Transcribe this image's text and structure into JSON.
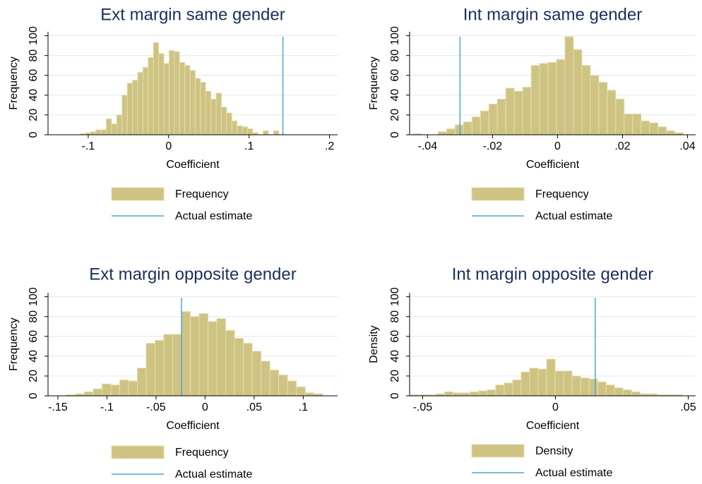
{
  "chart_data": [
    {
      "type": "histogram",
      "title": "Ext margin same gender",
      "xlabel": "Coefficient",
      "ylabel": "Frequency",
      "bars": {
        "name": "Frequency",
        "color": "#cfc383",
        "bins": [
          -0.11,
          -0.1035,
          -0.097,
          -0.0905,
          -0.084,
          -0.0775,
          -0.071,
          -0.0645,
          -0.058,
          -0.0515,
          -0.045,
          -0.0385,
          -0.032,
          -0.0255,
          -0.019,
          -0.0125,
          -0.006,
          0.0005,
          0.007,
          0.0135,
          0.02,
          0.0265,
          0.033,
          0.0395,
          0.046,
          0.0525,
          0.059,
          0.0655,
          0.072,
          0.0785,
          0.085,
          0.0915,
          0.098,
          0.1045,
          0.111,
          0.1175,
          0.124,
          0.1305,
          0.137
        ],
        "counts": [
          1,
          2,
          3,
          5,
          5,
          16,
          11,
          20,
          40,
          52,
          55,
          63,
          68,
          78,
          93,
          82,
          72,
          85,
          84,
          73,
          70,
          65,
          57,
          53,
          44,
          36,
          42,
          28,
          22,
          14,
          9,
          8,
          6,
          2,
          0,
          4,
          0,
          4
        ]
      },
      "vline": {
        "name": "Actual estimate",
        "value": 0.142,
        "color": "#4ca6d3"
      },
      "xlim": [
        -0.15,
        0.21
      ],
      "xticks": [
        {
          "value": -0.1,
          "label": "-.1"
        },
        0,
        {
          "value": 0.1,
          "label": ".1"
        },
        {
          "value": 0.2,
          "label": ".2"
        }
      ],
      "ylim": [
        0,
        104
      ],
      "yticks": [
        0,
        20,
        40,
        60,
        80,
        100
      ],
      "grid": true
    },
    {
      "type": "histogram",
      "title": "Int margin same gender",
      "xlabel": "Coefficient",
      "ylabel": "Frequency",
      "bars": {
        "name": "Frequency",
        "color": "#cfc383",
        "bins": [
          -0.0445,
          -0.0419,
          -0.0393,
          -0.0367,
          -0.0341,
          -0.0315,
          -0.0289,
          -0.0263,
          -0.0237,
          -0.0211,
          -0.0185,
          -0.0159,
          -0.0133,
          -0.0107,
          -0.0081,
          -0.0055,
          -0.0029,
          -0.0003,
          0.0023,
          0.0049,
          0.0075,
          0.0101,
          0.0127,
          0.0153,
          0.0179,
          0.0205,
          0.0231,
          0.0257,
          0.0283,
          0.0309,
          0.0335,
          0.0361,
          0.0387
        ],
        "counts": [
          1,
          0,
          0,
          3,
          6,
          10,
          13,
          18,
          24,
          31,
          36,
          47,
          44,
          48,
          70,
          72,
          73,
          76,
          99,
          86,
          70,
          60,
          53,
          45,
          36,
          21,
          21,
          14,
          12,
          8,
          4,
          2
        ]
      },
      "vline": {
        "name": "Actual estimate",
        "value": -0.03,
        "color": "#4ca6d3"
      },
      "xlim": [
        -0.0455,
        0.0425
      ],
      "xticks": [
        {
          "value": -0.04,
          "label": "-.04"
        },
        {
          "value": -0.02,
          "label": "-.02"
        },
        0,
        {
          "value": 0.02,
          "label": ".02"
        },
        {
          "value": 0.04,
          "label": ".04"
        }
      ],
      "ylim": [
        0,
        104
      ],
      "yticks": [
        0,
        20,
        40,
        60,
        80,
        100
      ],
      "grid": true
    },
    {
      "type": "histogram",
      "title": "Ext margin opposite gender",
      "xlabel": "Coefficient",
      "ylabel": "Frequency",
      "bars": {
        "name": "Frequency",
        "color": "#cfc383",
        "bins": [
          -0.15,
          -0.141,
          -0.132,
          -0.123,
          -0.114,
          -0.105,
          -0.096,
          -0.087,
          -0.078,
          -0.069,
          -0.06,
          -0.051,
          -0.042,
          -0.033,
          -0.024,
          -0.015,
          -0.006,
          0.003,
          0.012,
          0.021,
          0.03,
          0.039,
          0.048,
          0.057,
          0.066,
          0.075,
          0.084,
          0.093,
          0.102,
          0.111,
          0.12
        ],
        "counts": [
          0,
          1,
          2,
          4,
          7,
          12,
          11,
          16,
          15,
          28,
          53,
          56,
          62,
          62,
          85,
          80,
          83,
          75,
          78,
          66,
          58,
          53,
          45,
          35,
          26,
          21,
          15,
          9,
          3,
          2
        ]
      },
      "vline": {
        "name": "Actual estimate",
        "value": -0.024,
        "color": "#4ca6d3"
      },
      "xlim": [
        -0.16,
        0.135
      ],
      "xticks": [
        {
          "value": -0.15,
          "label": "-.15"
        },
        {
          "value": -0.1,
          "label": "-.1"
        },
        {
          "value": -0.05,
          "label": "-.05"
        },
        0,
        {
          "value": 0.05,
          "label": ".05"
        },
        {
          "value": 0.1,
          "label": ".1"
        }
      ],
      "ylim": [
        0,
        104
      ],
      "yticks": [
        0,
        20,
        40,
        60,
        80,
        100
      ],
      "grid": true
    },
    {
      "type": "histogram",
      "title": "Int margin opposite gender",
      "xlabel": "Coefficient",
      "ylabel": "Density",
      "bars": {
        "name": "Density",
        "color": "#cfc383",
        "bins": [
          -0.0545,
          -0.0513,
          -0.0481,
          -0.0449,
          -0.0417,
          -0.0385,
          -0.0353,
          -0.0321,
          -0.0289,
          -0.0257,
          -0.0225,
          -0.0193,
          -0.0161,
          -0.0129,
          -0.0097,
          -0.0065,
          -0.0033,
          -0.0001,
          0.0031,
          0.0063,
          0.0095,
          0.0127,
          0.0159,
          0.0191,
          0.0223,
          0.0255,
          0.0287,
          0.0319,
          0.0351,
          0.0383,
          0.0415,
          0.0447,
          0.0479,
          0.0511
        ],
        "counts": [
          1,
          1,
          1,
          2,
          4,
          3,
          3,
          4,
          5,
          6,
          11,
          13,
          16,
          24,
          28,
          27,
          37,
          25,
          25,
          20,
          18,
          17,
          14,
          11,
          8,
          6,
          4,
          2,
          2,
          1,
          1,
          1,
          0
        ]
      },
      "vline": {
        "name": "Actual estimate",
        "value": 0.015,
        "color": "#4ca6d3"
      },
      "xlim": [
        -0.0549,
        0.0528
      ],
      "xticks": [
        {
          "value": -0.05,
          "label": "-.05"
        },
        0,
        {
          "value": 0.05,
          "label": ".05"
        }
      ],
      "ylim": [
        0,
        104
      ],
      "yticks": [
        0,
        20,
        40,
        60,
        80,
        100
      ],
      "grid": true
    }
  ]
}
